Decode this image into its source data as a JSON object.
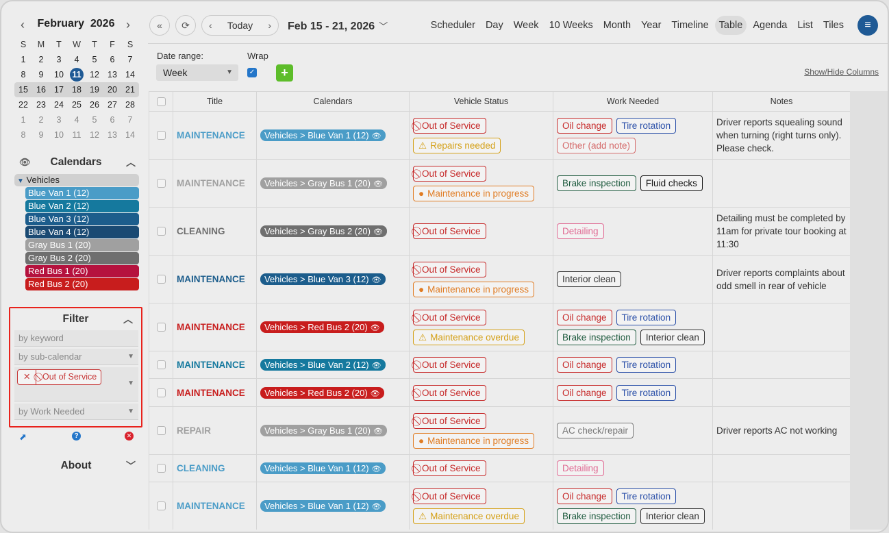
{
  "mini_calendar": {
    "month": "February",
    "year": "2026",
    "dows": [
      "S",
      "M",
      "T",
      "W",
      "T",
      "F",
      "S"
    ],
    "weeks": [
      [
        {
          "d": "1"
        },
        {
          "d": "2"
        },
        {
          "d": "3"
        },
        {
          "d": "4"
        },
        {
          "d": "5"
        },
        {
          "d": "6"
        },
        {
          "d": "7"
        }
      ],
      [
        {
          "d": "8"
        },
        {
          "d": "9"
        },
        {
          "d": "10"
        },
        {
          "d": "11",
          "today": true
        },
        {
          "d": "12"
        },
        {
          "d": "13"
        },
        {
          "d": "14"
        }
      ],
      [
        {
          "d": "15"
        },
        {
          "d": "16"
        },
        {
          "d": "17"
        },
        {
          "d": "18"
        },
        {
          "d": "19"
        },
        {
          "d": "20"
        },
        {
          "d": "21"
        }
      ],
      [
        {
          "d": "22"
        },
        {
          "d": "23"
        },
        {
          "d": "24"
        },
        {
          "d": "25"
        },
        {
          "d": "26"
        },
        {
          "d": "27"
        },
        {
          "d": "28"
        }
      ],
      [
        {
          "d": "1",
          "other": true
        },
        {
          "d": "2",
          "other": true
        },
        {
          "d": "3",
          "other": true
        },
        {
          "d": "4",
          "other": true
        },
        {
          "d": "5",
          "other": true
        },
        {
          "d": "6",
          "other": true
        },
        {
          "d": "7",
          "other": true
        }
      ],
      [
        {
          "d": "8",
          "other": true
        },
        {
          "d": "9",
          "other": true
        },
        {
          "d": "10",
          "other": true
        },
        {
          "d": "11",
          "other": true
        },
        {
          "d": "12",
          "other": true
        },
        {
          "d": "13",
          "other": true
        },
        {
          "d": "14",
          "other": true
        }
      ]
    ],
    "selected_week_index": 2
  },
  "calendars_section": {
    "title": "Calendars",
    "group": "Vehicles",
    "items": [
      {
        "name": "Blue Van 1 (12)",
        "color": "#4a9cc7"
      },
      {
        "name": "Blue Van 2 (12)",
        "color": "#15799e"
      },
      {
        "name": "Blue Van 3 (12)",
        "color": "#1c5d8c"
      },
      {
        "name": "Blue Van 4 (12)",
        "color": "#1a4a73"
      },
      {
        "name": "Gray Bus 1 (20)",
        "color": "#a0a0a0"
      },
      {
        "name": "Gray Bus 2 (20)",
        "color": "#6f6f6f"
      },
      {
        "name": "Red Bus 1 (20)",
        "color": "#b5123e"
      },
      {
        "name": "Red Bus 2 (20)",
        "color": "#c81d1d"
      }
    ]
  },
  "filter": {
    "title": "Filter",
    "keyword_placeholder": "by keyword",
    "subcalendar_placeholder": "by sub-calendar",
    "status_tag": "Out of Service",
    "work_placeholder": "by Work Needed"
  },
  "about": {
    "title": "About"
  },
  "header": {
    "today": "Today",
    "range": "Feb 15 - 21, 2026",
    "views": [
      "Scheduler",
      "Day",
      "Week",
      "10 Weeks",
      "Month",
      "Year",
      "Timeline",
      "Table",
      "Agenda",
      "List",
      "Tiles"
    ],
    "active_view": "Table"
  },
  "toolbar": {
    "date_range_label": "Date range:",
    "date_range_value": "Week",
    "wrap_label": "Wrap",
    "show_hide": "Show/Hide Columns"
  },
  "table": {
    "columns": [
      "Title",
      "Calendars",
      "Vehicle Status",
      "Work Needed",
      "Notes"
    ],
    "rows": [
      {
        "title": "MAINTENANCE",
        "title_color": "#4a9cc7",
        "cal": "Vehicles > Blue Van 1 (12)",
        "cal_color": "#4a9cc7",
        "status": [
          {
            "t": "Out of Service",
            "k": "oos"
          },
          {
            "t": "Repairs needed",
            "k": "warn"
          }
        ],
        "work": [
          [
            "Oil change",
            "Tire rotation"
          ],
          [
            "Other (add note)"
          ]
        ],
        "notes": "Driver reports squealing sound when turning (right turns only). Please check.",
        "h": 70
      },
      {
        "title": "MAINTENANCE",
        "title_color": "#a0a0a0",
        "cal": "Vehicles > Gray Bus 1 (20)",
        "cal_color": "#a0a0a0",
        "status": [
          {
            "t": "Out of Service",
            "k": "oos"
          },
          {
            "t": "Maintenance in progress",
            "k": "prog"
          }
        ],
        "work": [
          [
            "Brake inspection",
            "Fluid checks"
          ]
        ],
        "notes": "",
        "h": 70
      },
      {
        "title": "CLEANING",
        "title_color": "#6f6f6f",
        "cal": "Vehicles > Gray Bus 2 (20)",
        "cal_color": "#6f6f6f",
        "status": [
          {
            "t": "Out of Service",
            "k": "oos"
          }
        ],
        "work": [
          [
            "Detailing"
          ]
        ],
        "notes": "Detailing must be completed by 11am for private tour booking at 11:30",
        "h": 70
      },
      {
        "title": "MAINTENANCE",
        "title_color": "#1c5d8c",
        "cal": "Vehicles > Blue Van 3 (12)",
        "cal_color": "#1c5d8c",
        "status": [
          {
            "t": "Out of Service",
            "k": "oos"
          },
          {
            "t": "Maintenance in progress",
            "k": "prog"
          }
        ],
        "work": [
          [
            "Interior clean"
          ]
        ],
        "notes": "Driver reports complaints about odd smell in rear of vehicle",
        "h": 70
      },
      {
        "title": "MAINTENANCE",
        "title_color": "#c81d1d",
        "cal": "Vehicles > Red Bus 2 (20)",
        "cal_color": "#c81d1d",
        "status": [
          {
            "t": "Out of Service",
            "k": "oos"
          },
          {
            "t": "Maintenance overdue",
            "k": "warn"
          }
        ],
        "work": [
          [
            "Oil change",
            "Tire rotation"
          ],
          [
            "Brake inspection",
            "Interior clean"
          ]
        ],
        "notes": "",
        "h": 70
      },
      {
        "title": "MAINTENANCE",
        "title_color": "#15799e",
        "cal": "Vehicles > Blue Van 2 (12)",
        "cal_color": "#15799e",
        "status": [
          {
            "t": "Out of Service",
            "k": "oos"
          }
        ],
        "work": [
          [
            "Oil change",
            "Tire rotation"
          ]
        ],
        "notes": "",
        "h": 40
      },
      {
        "title": "MAINTENANCE",
        "title_color": "#c81d1d",
        "cal": "Vehicles > Red Bus 2 (20)",
        "cal_color": "#c81d1d",
        "status": [
          {
            "t": "Out of Service",
            "k": "oos"
          }
        ],
        "work": [
          [
            "Oil change",
            "Tire rotation"
          ]
        ],
        "notes": "",
        "h": 41
      },
      {
        "title": "REPAIR",
        "title_color": "#a0a0a0",
        "cal": "Vehicles > Gray Bus 1 (20)",
        "cal_color": "#a0a0a0",
        "status": [
          {
            "t": "Out of Service",
            "k": "oos"
          },
          {
            "t": "Maintenance in progress",
            "k": "prog"
          }
        ],
        "work": [
          [
            "AC check/repair"
          ]
        ],
        "notes": "Driver reports AC not working",
        "h": 70
      },
      {
        "title": "CLEANING",
        "title_color": "#4a9cc7",
        "cal": "Vehicles > Blue Van 1 (12)",
        "cal_color": "#4a9cc7",
        "status": [
          {
            "t": "Out of Service",
            "k": "oos"
          }
        ],
        "work": [
          [
            "Detailing"
          ]
        ],
        "notes": "",
        "h": 40
      },
      {
        "title": "MAINTENANCE",
        "title_color": "#4a9cc7",
        "cal": "Vehicles > Blue Van 1 (12)",
        "cal_color": "#4a9cc7",
        "status": [
          {
            "t": "Out of Service",
            "k": "oos"
          },
          {
            "t": "Maintenance overdue",
            "k": "warn"
          }
        ],
        "work": [
          [
            "Oil change",
            "Tire rotation"
          ],
          [
            "Brake inspection",
            "Interior clean"
          ]
        ],
        "notes": "",
        "h": 70
      }
    ]
  },
  "tag_colors": {
    "Oil change": "#c62828",
    "Tire rotation": "#2a4fa8",
    "Other (add note)": "#d46a6a",
    "Brake inspection": "#1f5b3f",
    "Fluid checks": "#111111",
    "Detailing": "#e06a93",
    "Interior clean": "#333333",
    "AC check/repair": "#777777"
  }
}
